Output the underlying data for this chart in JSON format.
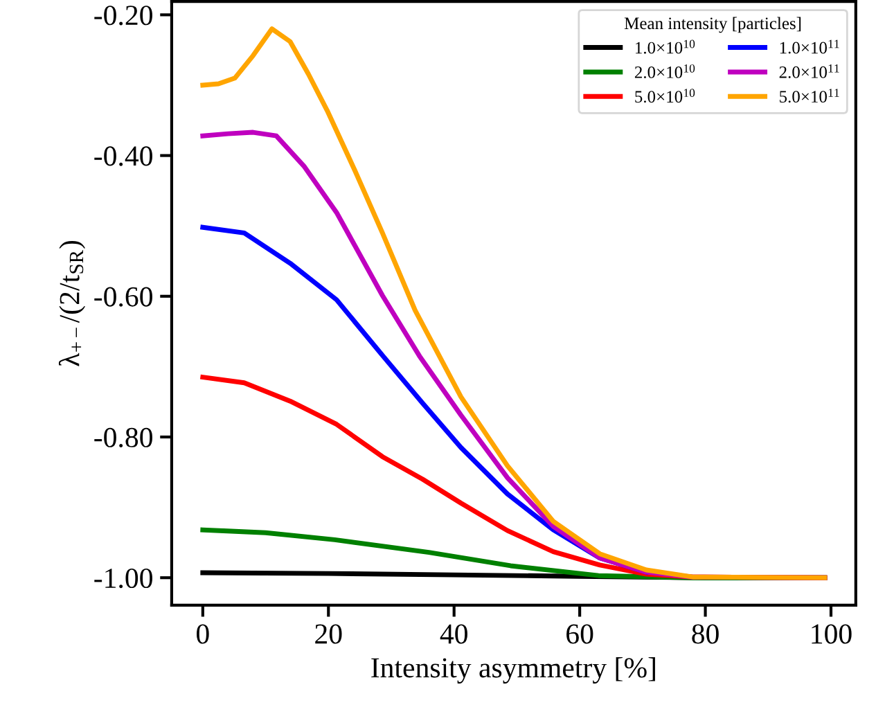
{
  "chart_data": {
    "type": "line",
    "xlabel": "Intensity asymmetry [%]",
    "ylabel": "λ$_{+−}$/(2/t$_{SR}$)",
    "legend_title": "Mean intensity [particles]",
    "legend": "top right",
    "grid": false,
    "line_style": "solid",
    "marker": "none",
    "xlim": [
      -4.95,
      103.95
    ],
    "ylim": [
      -1.039,
      -0.181
    ],
    "xticks": [
      0,
      20,
      40,
      60,
      80,
      100
    ],
    "yticks": [
      {
        "value": -1.0,
        "label": "-1.00"
      },
      {
        "value": -0.8,
        "label": "-0.80"
      },
      {
        "value": -0.6,
        "label": "-0.60"
      },
      {
        "value": -0.4,
        "label": "-0.40"
      },
      {
        "value": -0.2,
        "label": "-0.20"
      }
    ],
    "series": [
      {
        "name": "1.0×10$^{10}$",
        "color": "#000000",
        "x": [
          0,
          20,
          40,
          60,
          80,
          99
        ],
        "values": [
          -0.993,
          -0.994,
          -0.996,
          -0.998,
          -1.0,
          -1.0
        ]
      },
      {
        "name": "2.0×10$^{10}$",
        "color": "#008000",
        "x": [
          0,
          10,
          21,
          36,
          49,
          63,
          78,
          99
        ],
        "values": [
          -0.932,
          -0.936,
          -0.946,
          -0.964,
          -0.983,
          -0.997,
          -1.0,
          -1.0
        ]
      },
      {
        "name": "5.0×10$^{10}$",
        "color": "#ff0000",
        "x": [
          0,
          6.6,
          13.9,
          21.3,
          28.6,
          35,
          41.1,
          48.5,
          55.8,
          63.2,
          70.6,
          78,
          99
        ],
        "values": [
          -0.715,
          -0.723,
          -0.749,
          -0.782,
          -0.828,
          -0.86,
          -0.894,
          -0.933,
          -0.963,
          -0.982,
          -0.995,
          -0.999,
          -1.0
        ]
      },
      {
        "name": "1.0×10$^{11}$",
        "color": "#0000ff",
        "x": [
          0,
          6.6,
          13.9,
          21.3,
          28.6,
          35,
          41.1,
          48.5,
          55.8,
          63.2,
          70.6
        ],
        "values": [
          -0.502,
          -0.51,
          -0.553,
          -0.605,
          -0.684,
          -0.752,
          -0.815,
          -0.881,
          -0.932,
          -0.972,
          -0.992
        ]
      },
      {
        "name": "2.0×10$^{11}$",
        "color": "#bf00bf",
        "x": [
          0,
          4,
          8,
          11.7,
          16.1,
          21.3,
          28.6,
          34.5,
          41.1,
          48.5,
          55.8,
          63.2,
          70.6,
          78,
          99
        ],
        "values": [
          -0.372,
          -0.369,
          -0.367,
          -0.372,
          -0.415,
          -0.481,
          -0.599,
          -0.685,
          -0.769,
          -0.858,
          -0.927,
          -0.972,
          -0.992,
          -0.999,
          -1.0
        ]
      },
      {
        "name": "5.0×10$^{11}$",
        "color": "#ffa500",
        "x": [
          0,
          2.5,
          5.1,
          8,
          11,
          13.9,
          16.8,
          19.8,
          24.2,
          28.6,
          33.8,
          41.1,
          48.5,
          55.8,
          63.2,
          70.6,
          78,
          99
        ],
        "values": [
          -0.3,
          -0.298,
          -0.29,
          -0.258,
          -0.22,
          -0.238,
          -0.284,
          -0.336,
          -0.421,
          -0.51,
          -0.62,
          -0.743,
          -0.841,
          -0.92,
          -0.966,
          -0.989,
          -0.999,
          -1.0
        ]
      }
    ]
  }
}
